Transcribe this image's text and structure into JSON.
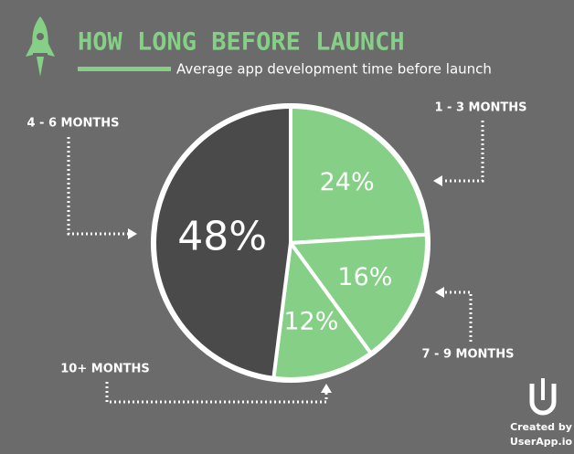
{
  "chart_data": {
    "type": "pie",
    "title": "HOW LONG BEFORE LAUNCH",
    "subtitle": "Average app development time before launch",
    "categories": [
      "1 - 3 MONTHS",
      "7 - 9 MONTHS",
      "10+ MONTHS",
      "4 - 6 MONTHS"
    ],
    "values": [
      24,
      16,
      12,
      48
    ],
    "value_labels": [
      "24%",
      "16%",
      "12%",
      "48%"
    ],
    "colors": [
      "#86cf86",
      "#86cf86",
      "#86cf86",
      "#4a4a4a"
    ],
    "credit": [
      "Created by",
      "UserApp.io"
    ]
  }
}
